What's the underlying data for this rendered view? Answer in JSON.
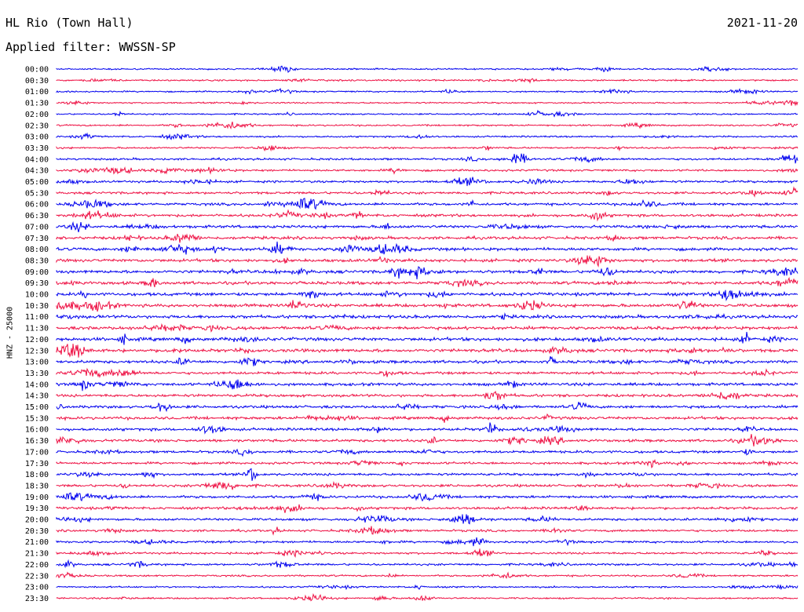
{
  "header": {
    "station": "HL Rio (Town Hall)",
    "date": "2021-11-20",
    "filter_prefix": "Applied filter:",
    "filter_name": "WWSSN-SP"
  },
  "channel_label": "HNZ - 25000",
  "colors": {
    "line_a": "#0000ee",
    "line_b": "#ee1144",
    "text": "#000000",
    "background": "#ffffff"
  },
  "chart_data": {
    "type": "line",
    "title": "",
    "xlabel": "",
    "ylabel": "HNZ - 25000",
    "row_minutes": 30,
    "grid": false,
    "rows": [
      {
        "label": "00:00",
        "activity": 0.25
      },
      {
        "label": "00:30",
        "activity": 0.3
      },
      {
        "label": "01:00",
        "activity": 0.25
      },
      {
        "label": "01:30",
        "activity": 0.25
      },
      {
        "label": "02:00",
        "activity": 0.25
      },
      {
        "label": "02:30",
        "activity": 0.3
      },
      {
        "label": "03:00",
        "activity": 0.3
      },
      {
        "label": "03:30",
        "activity": 0.35
      },
      {
        "label": "04:00",
        "activity": 0.45
      },
      {
        "label": "04:30",
        "activity": 0.45
      },
      {
        "label": "05:00",
        "activity": 0.5
      },
      {
        "label": "05:30",
        "activity": 0.55
      },
      {
        "label": "06:00",
        "activity": 0.6
      },
      {
        "label": "06:30",
        "activity": 0.65
      },
      {
        "label": "07:00",
        "activity": 0.7
      },
      {
        "label": "07:30",
        "activity": 0.7
      },
      {
        "label": "08:00",
        "activity": 0.75
      },
      {
        "label": "08:30",
        "activity": 0.75
      },
      {
        "label": "09:00",
        "activity": 0.75
      },
      {
        "label": "09:30",
        "activity": 0.8
      },
      {
        "label": "10:00",
        "activity": 0.8
      },
      {
        "label": "10:30",
        "activity": 0.8
      },
      {
        "label": "11:00",
        "activity": 0.8
      },
      {
        "label": "11:30",
        "activity": 0.8
      },
      {
        "label": "12:00",
        "activity": 0.85
      },
      {
        "label": "12:30",
        "activity": 0.8
      },
      {
        "label": "13:00",
        "activity": 0.75
      },
      {
        "label": "13:30",
        "activity": 0.65
      },
      {
        "label": "14:00",
        "activity": 0.7
      },
      {
        "label": "14:30",
        "activity": 0.65
      },
      {
        "label": "15:00",
        "activity": 0.65
      },
      {
        "label": "15:30",
        "activity": 0.7
      },
      {
        "label": "16:00",
        "activity": 0.65
      },
      {
        "label": "16:30",
        "activity": 0.65
      },
      {
        "label": "17:00",
        "activity": 0.6
      },
      {
        "label": "17:30",
        "activity": 0.55
      },
      {
        "label": "18:00",
        "activity": 0.55
      },
      {
        "label": "18:30",
        "activity": 0.6
      },
      {
        "label": "19:00",
        "activity": 0.6
      },
      {
        "label": "19:30",
        "activity": 0.6
      },
      {
        "label": "20:00",
        "activity": 0.55
      },
      {
        "label": "20:30",
        "activity": 0.5
      },
      {
        "label": "21:00",
        "activity": 0.5
      },
      {
        "label": "21:30",
        "activity": 0.45
      },
      {
        "label": "22:00",
        "activity": 0.45
      },
      {
        "label": "22:30",
        "activity": 0.35
      },
      {
        "label": "23:00",
        "activity": 0.3
      },
      {
        "label": "23:30",
        "activity": 0.3
      }
    ]
  }
}
